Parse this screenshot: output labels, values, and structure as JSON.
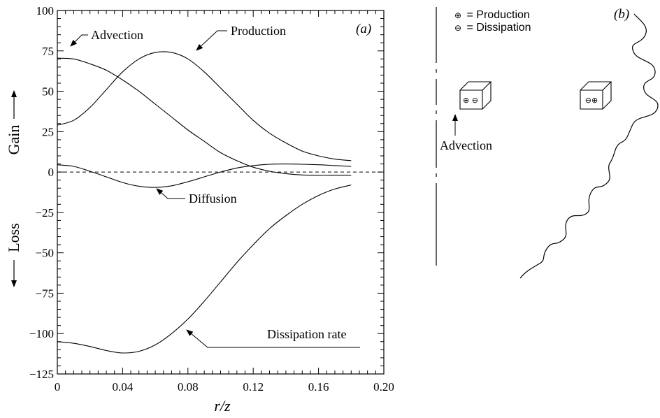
{
  "chart_data": {
    "type": "line",
    "panel_label": "(a)",
    "xlabel": "r/z",
    "xlim": [
      0,
      0.2
    ],
    "ylim": [
      -125,
      100
    ],
    "x_ticks": [
      0,
      0.04,
      0.08,
      0.12,
      0.16,
      0.2
    ],
    "x_tick_labels": [
      "0",
      "0.04",
      "0.08",
      "0.12",
      "0.16",
      "0.20"
    ],
    "y_ticks": [
      100,
      75,
      50,
      25,
      0,
      -25,
      -50,
      -75,
      -100,
      -125
    ],
    "y_tick_labels": [
      "100",
      "75",
      "50",
      "25",
      "0",
      "−25",
      "−50",
      "−75",
      "−100",
      "−125"
    ],
    "gain_label": "Gain",
    "loss_label": "Loss",
    "grid": false,
    "zero_line": "dashed",
    "series": [
      {
        "name": "Advection",
        "x": [
          0,
          0.01,
          0.02,
          0.03,
          0.04,
          0.05,
          0.06,
          0.07,
          0.08,
          0.09,
          0.1,
          0.11,
          0.12,
          0.13,
          0.14,
          0.15,
          0.16,
          0.17,
          0.18
        ],
        "y": [
          70.5,
          70,
          67,
          63,
          57,
          50,
          42,
          34,
          26,
          19,
          12,
          7,
          3,
          0.5,
          -1,
          -1.8,
          -2,
          -2,
          -2
        ]
      },
      {
        "name": "Production",
        "x": [
          0,
          0.01,
          0.02,
          0.03,
          0.04,
          0.05,
          0.06,
          0.07,
          0.08,
          0.09,
          0.1,
          0.11,
          0.12,
          0.13,
          0.14,
          0.15,
          0.16,
          0.17,
          0.18
        ],
        "y": [
          29,
          32,
          40,
          51,
          62,
          70,
          74,
          74,
          70,
          62,
          52,
          42,
          32,
          24,
          18,
          13,
          10,
          8,
          7
        ]
      },
      {
        "name": "Diffusion",
        "x": [
          0,
          0.01,
          0.02,
          0.03,
          0.04,
          0.05,
          0.06,
          0.07,
          0.08,
          0.09,
          0.1,
          0.11,
          0.12,
          0.13,
          0.14,
          0.15,
          0.16,
          0.17,
          0.18
        ],
        "y": [
          4.5,
          3.5,
          0.5,
          -3,
          -6.5,
          -8.8,
          -9.5,
          -8.5,
          -6,
          -3,
          0,
          2.5,
          4,
          4.8,
          5,
          4.8,
          4.5,
          4,
          3.5
        ]
      },
      {
        "name": "Dissipation rate",
        "x": [
          0,
          0.01,
          0.02,
          0.03,
          0.04,
          0.05,
          0.06,
          0.07,
          0.08,
          0.09,
          0.1,
          0.11,
          0.12,
          0.13,
          0.14,
          0.15,
          0.16,
          0.17,
          0.18
        ],
        "y": [
          -105,
          -106,
          -108,
          -110.5,
          -112,
          -111,
          -107,
          -100,
          -91,
          -80,
          -68,
          -56,
          -45,
          -35,
          -27,
          -20,
          -14.5,
          -10.5,
          -8
        ]
      }
    ],
    "annotations": [
      "Advection",
      "Production",
      "Diffusion",
      "Dissipation rate"
    ]
  },
  "schematic": {
    "panel_label": "(b)",
    "legend": [
      {
        "symbol": "⊕",
        "text": "= Production"
      },
      {
        "symbol": "⊖",
        "text": "= Dissipation"
      }
    ],
    "box_left_symbols": "⊕ ⊖",
    "box_right_symbols": "⊖⊕",
    "advection_label": "Advection"
  }
}
